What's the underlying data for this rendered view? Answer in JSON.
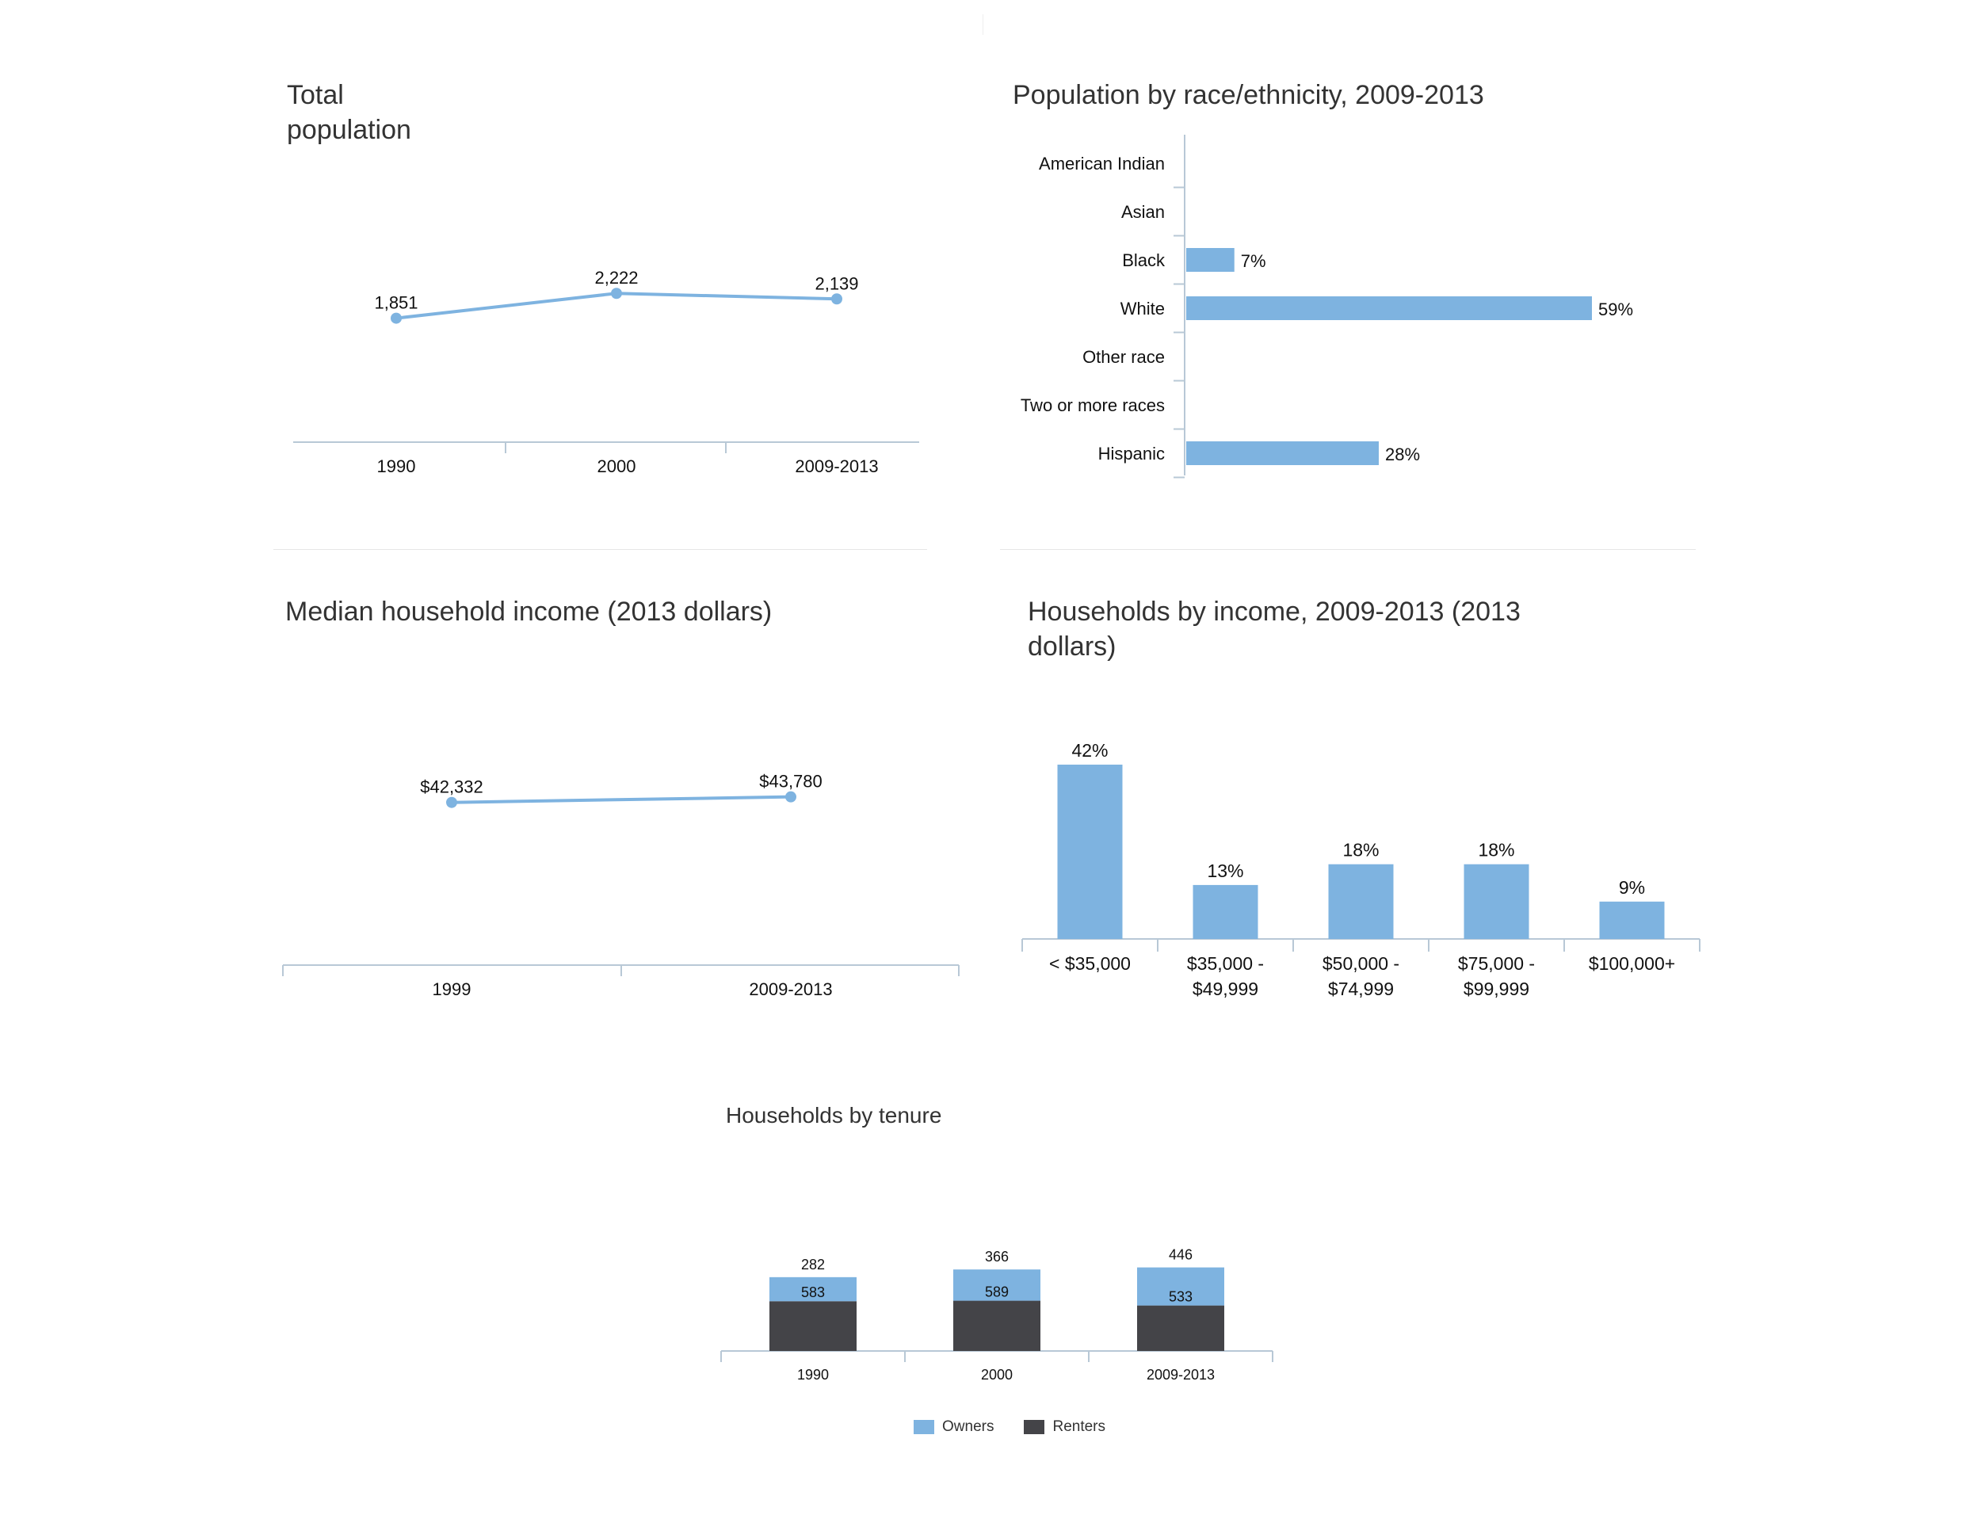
{
  "colors": {
    "blue": "#7eb3e0",
    "dark": "#444448",
    "axis": "#b8c8d6"
  },
  "chart_data": [
    {
      "id": "total-population",
      "type": "line",
      "title": "Total population",
      "categories": [
        "1990",
        "2000",
        "2009-2013"
      ],
      "values": [
        1851,
        2222,
        2139
      ],
      "value_labels": [
        "1,851",
        "2,222",
        "2,139"
      ],
      "ylim": [
        0,
        4000
      ],
      "xlabel": "",
      "ylabel": ""
    },
    {
      "id": "race-ethnicity",
      "type": "bar",
      "orientation": "horizontal",
      "title": "Population by race/ethnicity, 2009-2013",
      "categories": [
        "American Indian",
        "Asian",
        "Black",
        "White",
        "Other race",
        "Two or more races",
        "Hispanic"
      ],
      "values": [
        0,
        0,
        7,
        59,
        0,
        0,
        28
      ],
      "value_labels": [
        "",
        "",
        "7%",
        "59%",
        "",
        "",
        "28%"
      ],
      "xlim": [
        0,
        65
      ]
    },
    {
      "id": "median-income",
      "type": "line",
      "title": "Median household income (2013 dollars)",
      "categories": [
        "1999",
        "2009-2013"
      ],
      "values": [
        42332,
        43780
      ],
      "value_labels": [
        "$42,332",
        "$43,780"
      ],
      "ylim": [
        0,
        80000
      ]
    },
    {
      "id": "households-income",
      "type": "bar",
      "title": "Households by income, 2009-2013 (2013 dollars)",
      "categories": [
        [
          "< $35,000"
        ],
        [
          "$35,000 -",
          "$49,999"
        ],
        [
          "$50,000 -",
          "$74,999"
        ],
        [
          "$75,000 -",
          "$99,999"
        ],
        [
          "$100,000+"
        ]
      ],
      "values": [
        42,
        13,
        18,
        18,
        9
      ],
      "value_labels": [
        "42%",
        "13%",
        "18%",
        "18%",
        "9%"
      ],
      "ylim": [
        0,
        45
      ]
    },
    {
      "id": "households-tenure",
      "type": "bar",
      "stacked": true,
      "title": "Households by tenure",
      "categories": [
        "1990",
        "2000",
        "2009-2013"
      ],
      "series": [
        {
          "name": "Owners",
          "values": [
            282,
            366,
            446
          ],
          "color": "#7eb3e0"
        },
        {
          "name": "Renters",
          "values": [
            583,
            589,
            533
          ],
          "color": "#444448"
        }
      ],
      "ylim": [
        0,
        1100
      ],
      "legend": "bottom"
    }
  ]
}
